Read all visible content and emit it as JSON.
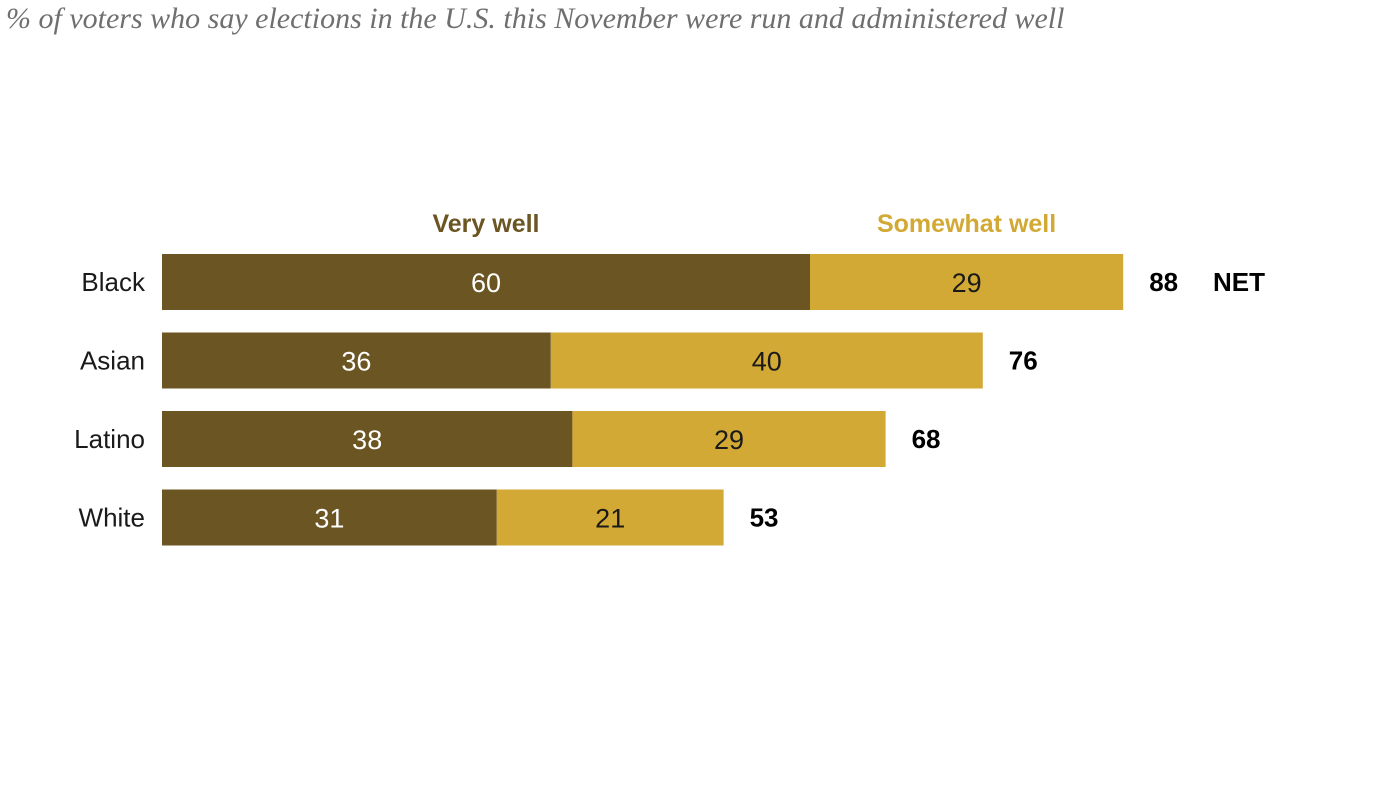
{
  "subtitle": "% of voters who say elections in the U.S. this November were run and administered well",
  "chart_data": {
    "type": "bar",
    "orientation": "horizontal",
    "stacked": true,
    "categories": [
      "Black",
      "Asian",
      "Latino",
      "White"
    ],
    "series": [
      {
        "name": "Very well",
        "values": [
          60,
          36,
          38,
          31
        ],
        "color": "#6b5522",
        "label_color": "#ffffff"
      },
      {
        "name": "Somewhat well",
        "values": [
          29,
          40,
          29,
          21
        ],
        "color": "#d2a934",
        "label_color": "#1a1a1a"
      }
    ],
    "net": {
      "label": "NET",
      "values": [
        88,
        76,
        68,
        53
      ]
    },
    "xlim": [
      0,
      100
    ],
    "grid": false,
    "legend": "top"
  }
}
